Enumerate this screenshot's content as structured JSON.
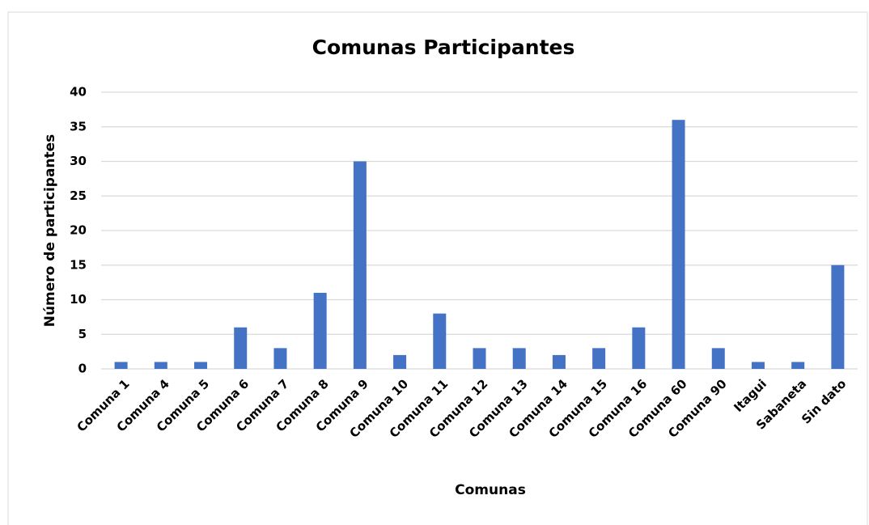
{
  "chart_data": {
    "type": "bar",
    "title": "Comunas Participantes",
    "x_label": "Comunas",
    "y_label": "Número de participantes",
    "categories": [
      "Comuna 1",
      "Comuna 4",
      "Comuna 5",
      "Comuna 6",
      "Comuna 7",
      "Comuna 8",
      "Comuna 9",
      "Comuna 10",
      "Comuna 11",
      "Comuna 12",
      "Comuna 13",
      "Comuna 14",
      "Comuna 15",
      "Comuna 16",
      "Comuna 60",
      "Comuna 90",
      "Itagui",
      "Sabaneta",
      "Sin dato"
    ],
    "values": [
      1,
      1,
      1,
      6,
      3,
      11,
      30,
      2,
      8,
      3,
      3,
      2,
      3,
      6,
      36,
      3,
      1,
      1,
      15
    ],
    "color": "#4472c4",
    "ylim": [
      0,
      40
    ],
    "yticks": [
      0,
      5,
      10,
      15,
      20,
      25,
      30,
      35,
      40
    ],
    "grid": true
  }
}
